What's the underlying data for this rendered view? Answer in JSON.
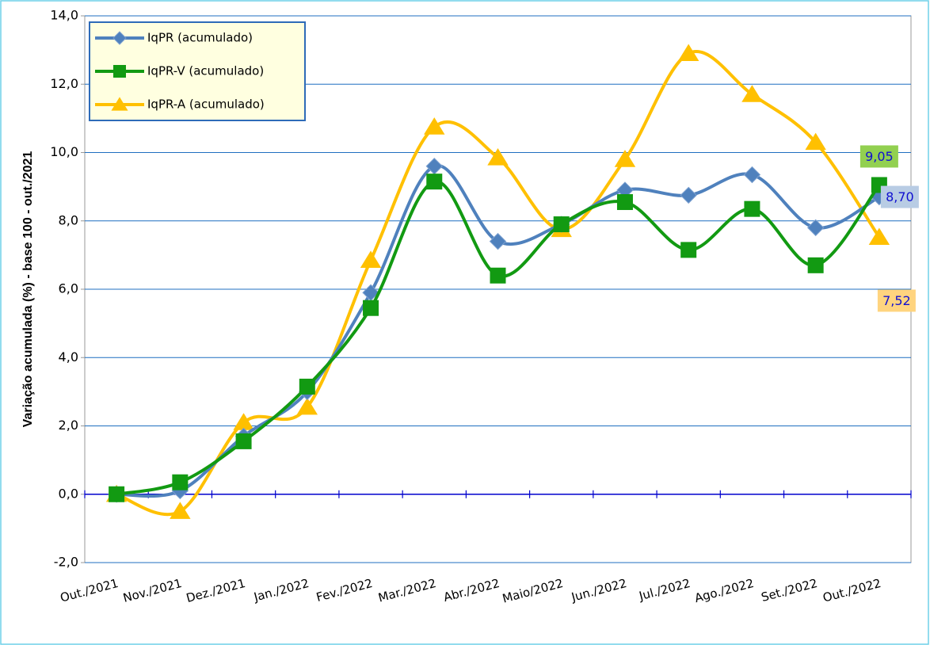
{
  "chart_data": {
    "type": "line",
    "y_label": "Variação acumulada (%) - base 100 - out./2021",
    "categories": [
      "Out./2021",
      "Nov./2021",
      "Dez./2021",
      "Jan./2022",
      "Fev./2022",
      "Mar./2022",
      "Abr./2022",
      "Maio/2022",
      "Jun./2022",
      "Jul./2022",
      "Ago./2022",
      "Set./2022",
      "Out./2022"
    ],
    "series": [
      {
        "name": "IqPR (acumulado)",
        "color": "#4F81BD",
        "marker": "diamond",
        "values": [
          0,
          0.1,
          1.7,
          3.0,
          5.9,
          9.6,
          7.4,
          7.9,
          8.9,
          8.75,
          9.35,
          7.8,
          8.7
        ],
        "value_labels": [
          null,
          null,
          null,
          null,
          null,
          null,
          null,
          null,
          null,
          null,
          null,
          null,
          "8,70"
        ]
      },
      {
        "name": "IqPR-V  (acumulado)",
        "color": "#129A12",
        "marker": "square",
        "values": [
          0,
          0.35,
          1.55,
          3.15,
          5.45,
          9.15,
          6.4,
          7.9,
          8.55,
          7.15,
          8.35,
          6.7,
          9.05
        ],
        "value_labels": [
          null,
          null,
          null,
          null,
          null,
          null,
          null,
          null,
          null,
          null,
          null,
          null,
          "9,05"
        ]
      },
      {
        "name": "IqPR-A  (acumulado)",
        "color": "#FFC000",
        "marker": "triangle",
        "values": [
          0,
          -0.5,
          2.1,
          2.55,
          6.85,
          10.75,
          9.85,
          7.75,
          9.8,
          12.9,
          11.7,
          10.3,
          7.52
        ],
        "value_labels": [
          null,
          null,
          null,
          null,
          null,
          null,
          null,
          null,
          null,
          null,
          null,
          null,
          "7,52"
        ]
      }
    ],
    "ylim": [
      -2,
      14
    ],
    "yticks": [
      {
        "value": -2,
        "label": "-2,0"
      },
      {
        "value": 0,
        "label": "0,0"
      },
      {
        "value": 2,
        "label": "2,0"
      },
      {
        "value": 4,
        "label": "4,0"
      },
      {
        "value": 6,
        "label": "6,0"
      },
      {
        "value": 8,
        "label": "8,0"
      },
      {
        "value": 10,
        "label": "10,0"
      },
      {
        "value": 12,
        "label": "12,0"
      },
      {
        "value": 14,
        "label": "14,0"
      }
    ],
    "grid": true,
    "legend": "upper left"
  }
}
